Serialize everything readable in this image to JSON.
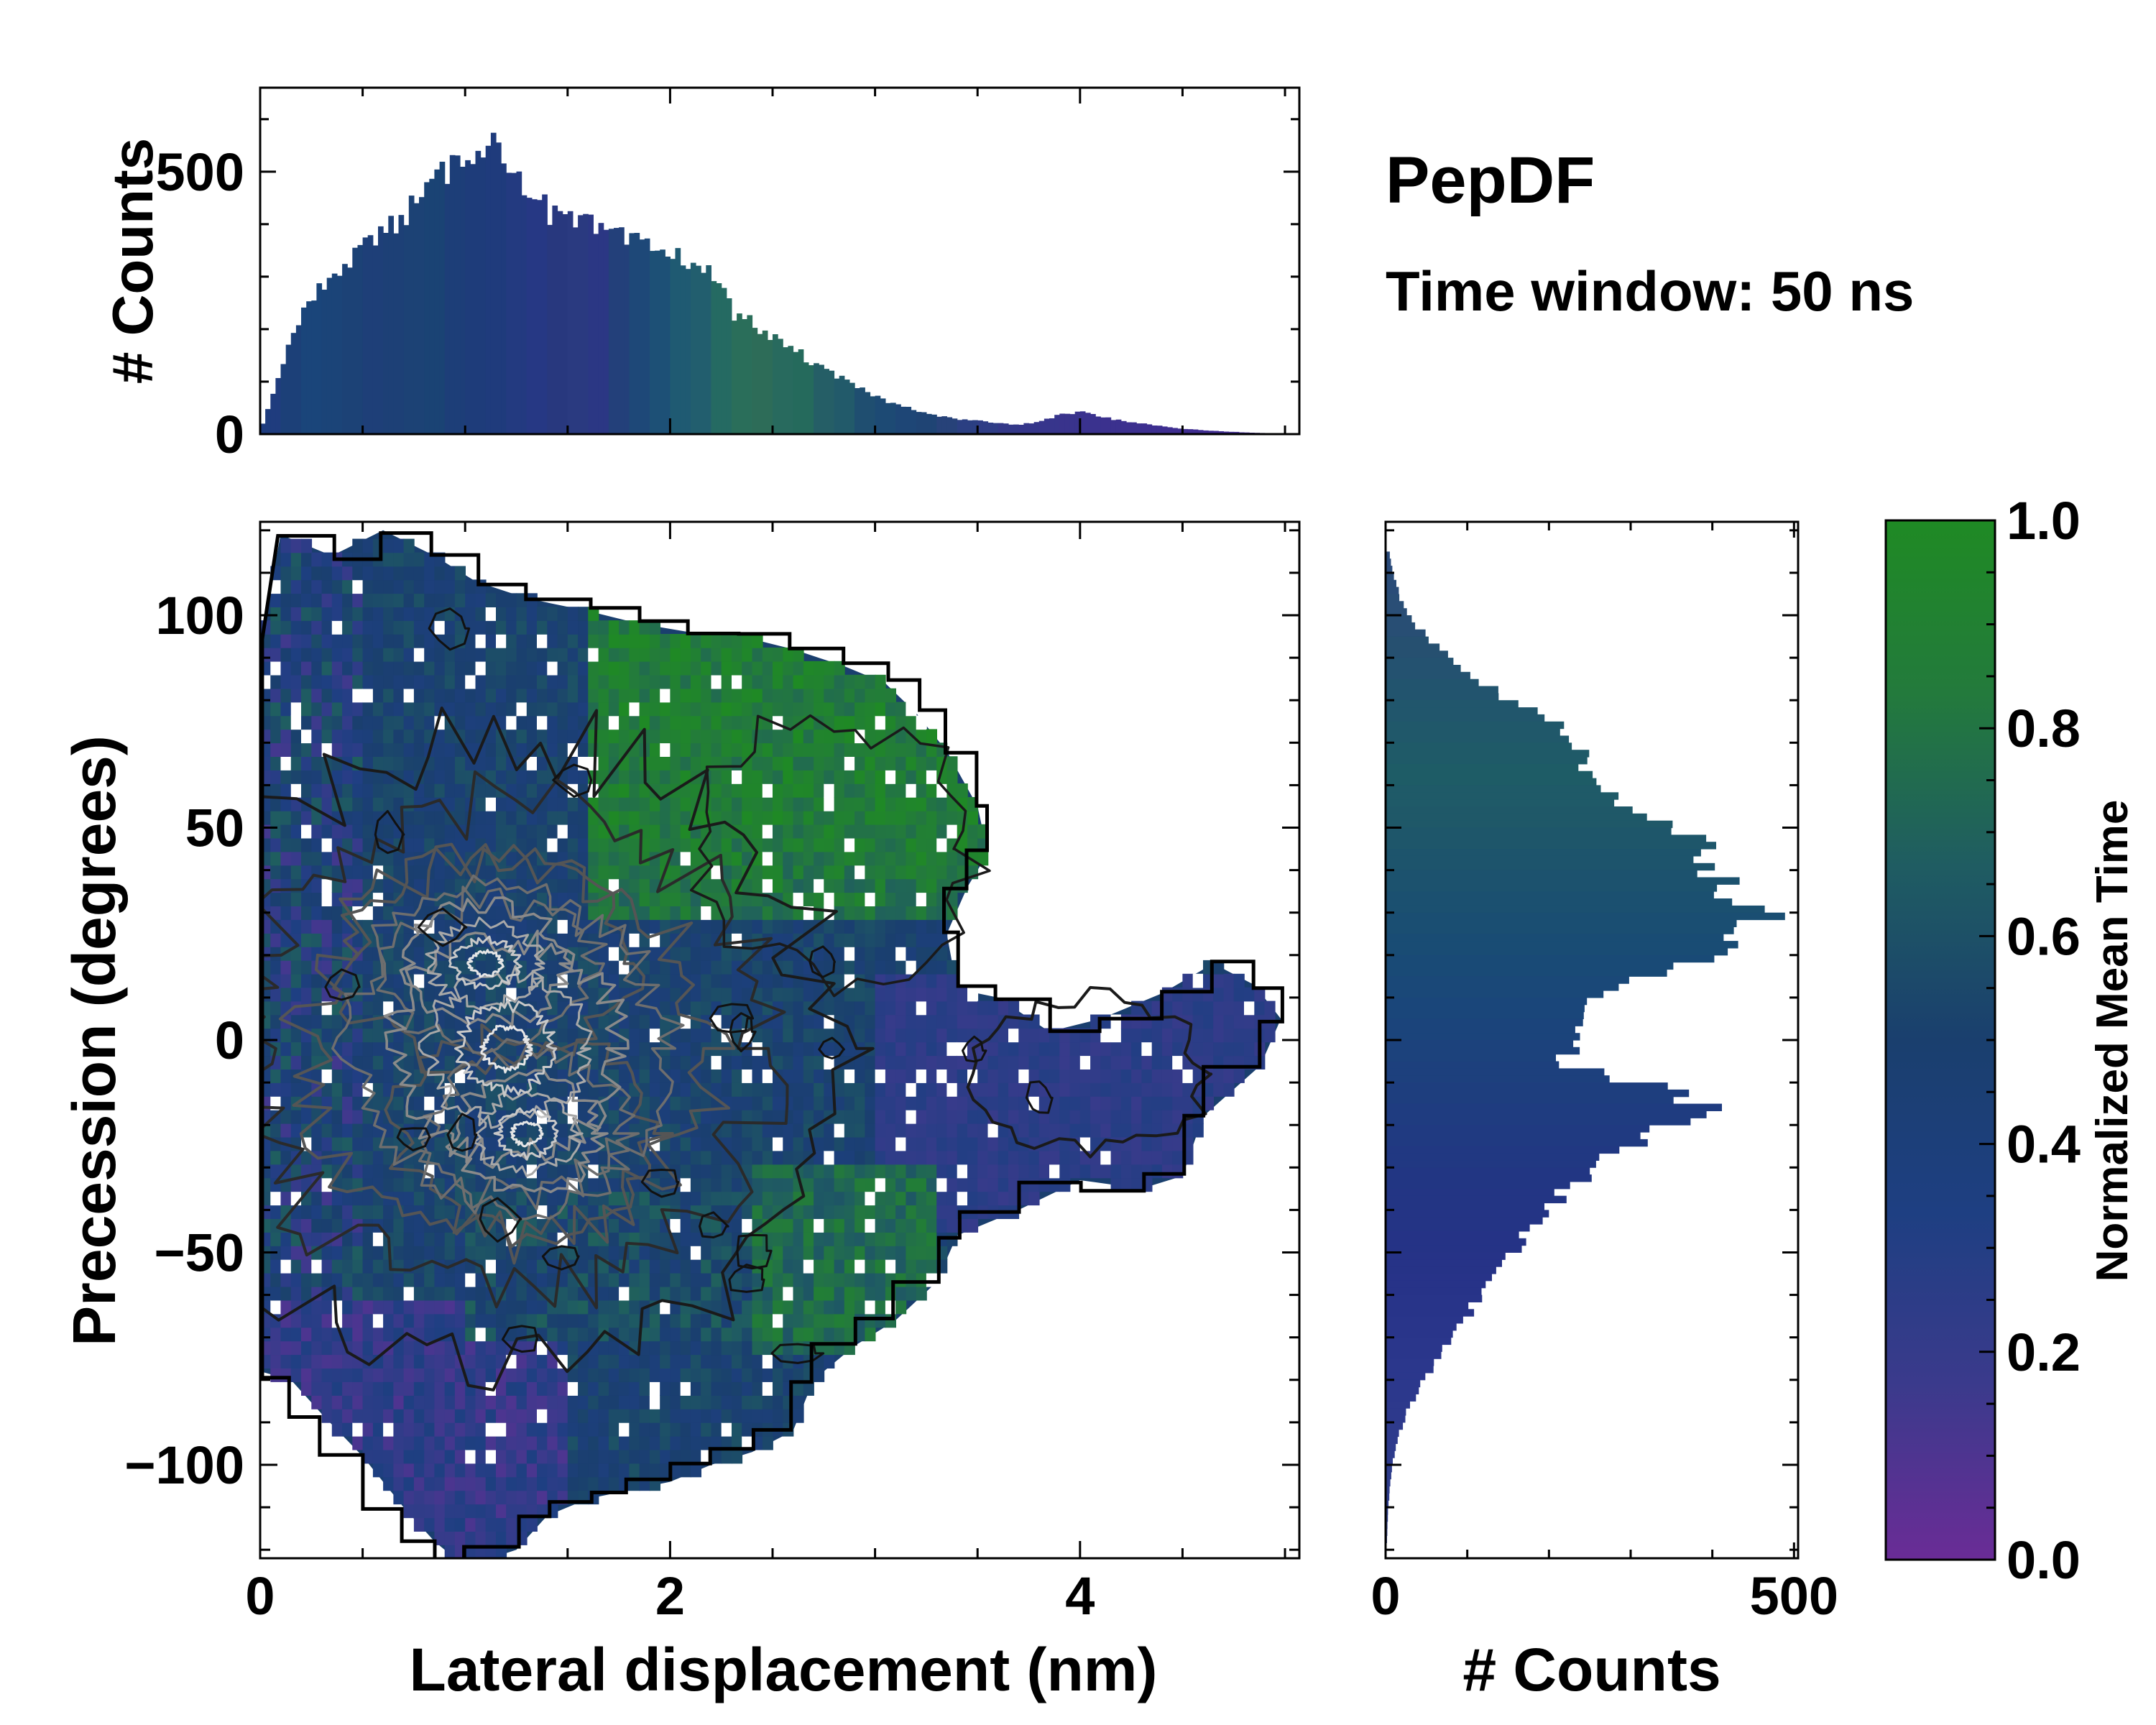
{
  "chart_data": {
    "type": "heatmap",
    "title": "PepDF",
    "subtitle": "Time window: 50 ns",
    "main": {
      "type": "heatmap",
      "xlabel": "Lateral displacement (nm)",
      "ylabel": "Precession (degrees)",
      "xlim": [
        0,
        5.07
      ],
      "ylim": [
        -122,
        122
      ],
      "xticks": [
        0,
        2,
        4
      ],
      "yticks": [
        -100,
        -50,
        0,
        50,
        100
      ],
      "xtick_labels": [
        "0",
        "2",
        "4"
      ],
      "ytick_labels": [
        "−100",
        "−50",
        "0",
        "50",
        "100"
      ],
      "density_peaks": [
        {
          "x": 1.1,
          "y": 18,
          "label": "upper density peak"
        },
        {
          "x": 1.3,
          "y": -22,
          "label": "lower density peak"
        }
      ],
      "color_regions": [
        {
          "region": "upper-right lobe x 1.6-3.5, y 30-95",
          "normalized_mean_time": 0.9
        },
        {
          "region": "right arm x 3-5, y -40-10",
          "normalized_mean_time": 0.25
        },
        {
          "region": "left edge x 0-0.5",
          "normalized_mean_time": 0.3
        },
        {
          "region": "lower band x 0-1.5, y -100--60",
          "normalized_mean_time": 0.2
        },
        {
          "region": "central bulk",
          "normalized_mean_time": 0.5
        }
      ]
    },
    "top_histogram": {
      "type": "bar",
      "ylabel": "# Counts",
      "ylim": [
        0,
        660
      ],
      "yticks": [
        0,
        500
      ],
      "ytick_labels": [
        "0",
        "500"
      ],
      "x": [
        0.0,
        0.1,
        0.2,
        0.3,
        0.4,
        0.5,
        0.6,
        0.7,
        0.8,
        0.9,
        1.0,
        1.1,
        1.2,
        1.3,
        1.4,
        1.5,
        1.6,
        1.7,
        1.8,
        1.9,
        2.0,
        2.1,
        2.2,
        2.3,
        2.4,
        2.5,
        2.6,
        2.7,
        2.8,
        2.9,
        3.0,
        3.1,
        3.2,
        3.3,
        3.4,
        3.5,
        3.6,
        3.7,
        3.8,
        3.9,
        4.0,
        4.1,
        4.2,
        4.3,
        4.4,
        4.5,
        4.6,
        4.7,
        4.8,
        4.9,
        5.0
      ],
      "values": [
        20,
        140,
        230,
        290,
        330,
        360,
        390,
        420,
        460,
        500,
        540,
        560,
        520,
        470,
        420,
        405,
        395,
        380,
        365,
        355,
        340,
        330,
        300,
        230,
        210,
        180,
        160,
        130,
        110,
        90,
        70,
        55,
        45,
        35,
        28,
        25,
        20,
        18,
        25,
        38,
        42,
        32,
        25,
        20,
        14,
        10,
        7,
        5,
        3,
        2,
        1
      ],
      "colors": [
        "#1f3c7e",
        "#1c4078",
        "#1a457a",
        "#1b4478",
        "#1c4276",
        "#1e3f78",
        "#1d4076",
        "#1c4275",
        "#1a4374",
        "#1d3e78",
        "#1e3c7a",
        "#1f3b7c",
        "#233a80",
        "#263884",
        "#28387e",
        "#2a3a80",
        "#2b3784",
        "#23407a",
        "#1e4878",
        "#1d5076",
        "#1f5a72",
        "#225e6e",
        "#256a62",
        "#2a6e5a",
        "#2d6c58",
        "#286a5e",
        "#256a5c",
        "#255e66",
        "#225a6a",
        "#1f4e70",
        "#1d4a74",
        "#1e4676",
        "#1f4474",
        "#274279",
        "#2b3f82",
        "#2f3d86",
        "#333888",
        "#35368a",
        "#37358c",
        "#39338c",
        "#3a328e",
        "#3b318e",
        "#3c308f",
        "#3d2f90",
        "#3e2e90",
        "#3f2d91",
        "#402c92",
        "#412b92",
        "#422a93",
        "#432994",
        "#442894"
      ]
    },
    "right_histogram": {
      "type": "bar",
      "xlabel": "# Counts",
      "xlim": [
        0,
        505
      ],
      "xticks": [
        0,
        500
      ],
      "xtick_labels": [
        "0",
        "500"
      ],
      "y": [
        115,
        110,
        105,
        100,
        95,
        90,
        85,
        80,
        75,
        70,
        65,
        60,
        55,
        50,
        45,
        40,
        35,
        30,
        25,
        20,
        15,
        10,
        5,
        0,
        -5,
        -10,
        -15,
        -20,
        -25,
        -30,
        -35,
        -40,
        -45,
        -50,
        -55,
        -60,
        -65,
        -70,
        -75,
        -80,
        -85,
        -90,
        -95,
        -100,
        -105,
        -110,
        -115,
        -120
      ],
      "values": [
        5,
        10,
        18,
        30,
        55,
        85,
        120,
        160,
        210,
        240,
        250,
        270,
        300,
        360,
        400,
        410,
        430,
        470,
        440,
        380,
        320,
        260,
        230,
        230,
        220,
        330,
        390,
        340,
        280,
        250,
        220,
        200,
        175,
        150,
        130,
        115,
        95,
        80,
        60,
        45,
        30,
        20,
        12,
        8,
        5,
        3,
        2,
        1
      ],
      "colors": [
        "#2a4a7a",
        "#2a4c78",
        "#2a4e76",
        "#284e74",
        "#265070",
        "#245270",
        "#22546e",
        "#21566c",
        "#20586a",
        "#1f5a68",
        "#1e5c66",
        "#1f5a68",
        "#1f5868",
        "#1e566a",
        "#1d546c",
        "#1c526e",
        "#1b5070",
        "#1a4e72",
        "#194c74",
        "#194a76",
        "#1a4878",
        "#1a467a",
        "#1b447b",
        "#1c427c",
        "#1d407d",
        "#1e3e7e",
        "#1f3c80",
        "#203a81",
        "#213882",
        "#223683",
        "#233584",
        "#243485",
        "#253386",
        "#263387",
        "#273388",
        "#283489",
        "#29358a",
        "#2a368b",
        "#2b378c",
        "#2c388c",
        "#2d398c",
        "#2e3a8c",
        "#2e3b8c",
        "#2e3c8b",
        "#2e3d8a",
        "#2e3e89",
        "#2e3f88",
        "#2e4087"
      ]
    },
    "colorbar": {
      "label": "Normalized Mean Time",
      "range": [
        0.0,
        1.0
      ],
      "ticks": [
        0.0,
        0.2,
        0.4,
        0.6,
        0.8,
        1.0
      ],
      "tick_labels": [
        "0.0",
        "0.2",
        "0.4",
        "0.6",
        "0.8",
        "1.0"
      ],
      "colormap_stops": [
        "#6a2c96",
        "#3b3a8c",
        "#1e3f82",
        "#1a3f6e",
        "#1f5c62",
        "#237a3c",
        "#1f8a24"
      ]
    }
  }
}
